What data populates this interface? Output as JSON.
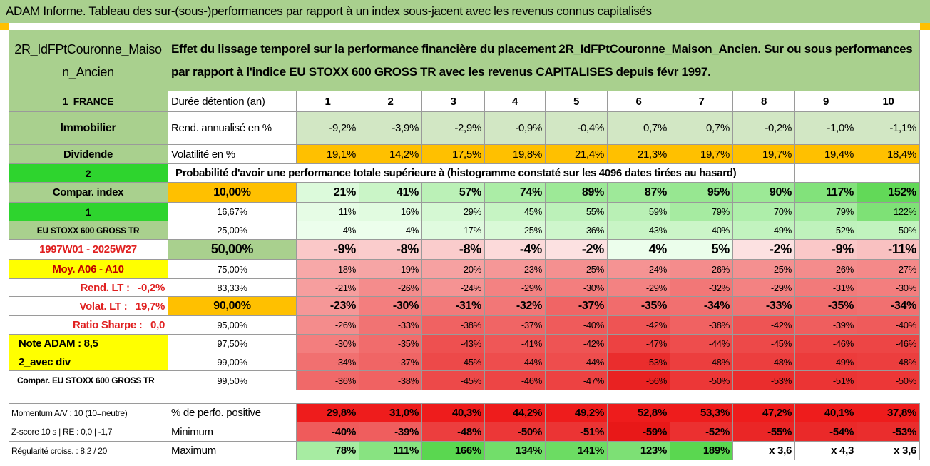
{
  "title": "ADAM Informe. Tableau des sur-(sous-)performances par rapport à un index sous-jacent avec les revenus connus capitalisés",
  "header": {
    "name": "2R_IdFPtCouronne_Maison_Ancien",
    "description": "Effet du lissage temporel sur la performance financière du placement 2R_IdFPtCouronne_Maison_Ancien. Sur ou sous performances par rapport à l'indice EU STOXX 600 GROSS TR avec les revenus CAPITALISES depuis févr 1997."
  },
  "table": {
    "rows": [
      [
        "1_FRANCE",
        "Durée détention (an)",
        "1",
        "2",
        "3",
        "4",
        "5",
        "6",
        "7",
        "8",
        "9",
        "10"
      ],
      [
        "Immobilier",
        "Rend. annualisé en %",
        "-9,2%",
        "-3,9%",
        "-2,9%",
        "-0,9%",
        "-0,4%",
        "0,7%",
        "0,7%",
        "-0,2%",
        "-1,0%",
        "-1,1%"
      ],
      [
        "Dividende",
        "Volatilité en %",
        "19,1%",
        "14,2%",
        "17,5%",
        "19,8%",
        "21,4%",
        "21,3%",
        "19,7%",
        "19,7%",
        "19,4%",
        "18,4%"
      ],
      [
        "2",
        "Probabilité d'avoir une performance totale supérieure à (histogramme constaté sur les 4096 dates tirées au hasard)"
      ],
      [
        "Compar. index",
        "10,00%",
        "21%",
        "41%",
        "57%",
        "74%",
        "89%",
        "87%",
        "95%",
        "90%",
        "117%",
        "152%"
      ],
      [
        "1",
        "16,67%",
        "11%",
        "16%",
        "29%",
        "45%",
        "55%",
        "59%",
        "79%",
        "70%",
        "79%",
        "122%"
      ],
      [
        "EU STOXX 600 GROSS TR",
        "25,00%",
        "4%",
        "4%",
        "17%",
        "25%",
        "36%",
        "43%",
        "40%",
        "49%",
        "52%",
        "50%"
      ],
      [
        "1997W01 - 2025W27",
        "50,00%",
        "-9%",
        "-8%",
        "-8%",
        "-4%",
        "-2%",
        "4%",
        "5%",
        "-2%",
        "-9%",
        "-11%"
      ],
      [
        "Moy. A06 - A10",
        "75,00%",
        "-18%",
        "-19%",
        "-20%",
        "-23%",
        "-25%",
        "-24%",
        "-26%",
        "-25%",
        "-26%",
        "-27%"
      ],
      [
        "Rend. LT :   -0,2%",
        "83,33%",
        "-21%",
        "-26%",
        "-24%",
        "-29%",
        "-30%",
        "-29%",
        "-32%",
        "-29%",
        "-31%",
        "-30%"
      ],
      [
        "Volat. LT :   19,7%",
        "90,00%",
        "-23%",
        "-30%",
        "-31%",
        "-32%",
        "-37%",
        "-35%",
        "-34%",
        "-33%",
        "-35%",
        "-34%"
      ],
      [
        "Ratio Sharpe :   0,0",
        "95,00%",
        "-26%",
        "-33%",
        "-38%",
        "-37%",
        "-40%",
        "-42%",
        "-38%",
        "-42%",
        "-39%",
        "-40%"
      ],
      [
        "Note ADAM : 8,5",
        "97,50%",
        "-30%",
        "-35%",
        "-43%",
        "-41%",
        "-42%",
        "-47%",
        "-44%",
        "-45%",
        "-46%",
        "-46%"
      ],
      [
        "2_avec div",
        "99,00%",
        "-34%",
        "-37%",
        "-45%",
        "-44%",
        "-44%",
        "-53%",
        "-48%",
        "-48%",
        "-49%",
        "-48%"
      ],
      [
        "Compar. EU STOXX 600 GROSS TR",
        "99,50%",
        "-36%",
        "-38%",
        "-45%",
        "-46%",
        "-47%",
        "-56%",
        "-50%",
        "-53%",
        "-51%",
        "-50%"
      ]
    ]
  },
  "footer": {
    "rows": [
      [
        "Momentum A/V : 10 (10=neutre)",
        "% de perfo. positive",
        "29,8%",
        "31,0%",
        "40,3%",
        "44,2%",
        "49,2%",
        "52,8%",
        "53,3%",
        "47,2%",
        "40,1%",
        "37,8%"
      ],
      [
        "Z-score 10 s | RE : 0,0 | -1,7",
        "Minimum",
        "-40%",
        "-39%",
        "-48%",
        "-50%",
        "-51%",
        "-59%",
        "-52%",
        "-55%",
        "-54%",
        "-53%"
      ],
      [
        "Régularité croiss. : 8,2 / 20",
        "Maximum",
        "78%",
        "111%",
        "166%",
        "134%",
        "141%",
        "123%",
        "189%",
        "x 3,6",
        "x 4,3",
        "x 3,6"
      ]
    ]
  }
}
